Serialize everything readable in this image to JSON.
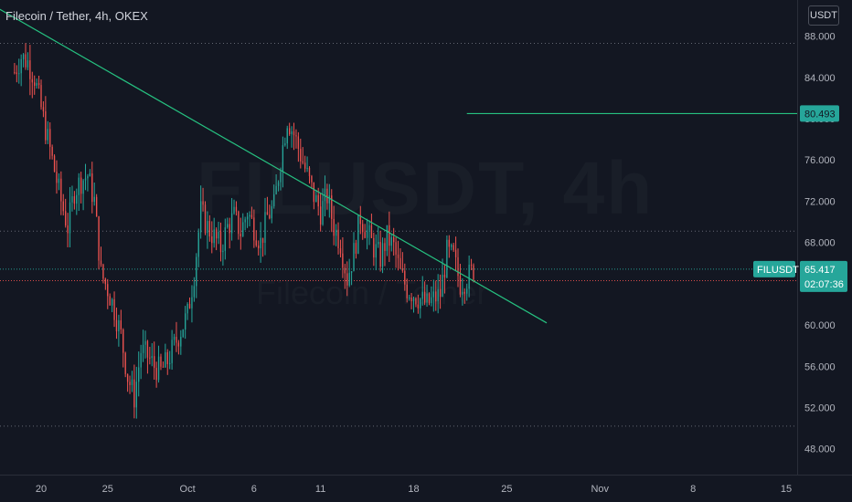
{
  "header": {
    "symbol_title": "Filecoin / Tether, 4h, OKEX",
    "unit_label": "USDT"
  },
  "watermark": {
    "main": "FILUSDT, 4h",
    "sub": "Filecoin / Tether"
  },
  "colors": {
    "background": "#131722",
    "up": "#26a69a",
    "down": "#ef5350",
    "trendline": "#26c281",
    "last_price_badge": "#26a69a",
    "grid_dotted": "#787b86",
    "axis_text": "#b2b5be"
  },
  "price_axis": {
    "ticks": [
      "88.000",
      "84.000",
      "80.000",
      "76.000",
      "72.000",
      "68.000",
      "64.000",
      "60.000",
      "56.000",
      "52.000",
      "48.000"
    ],
    "badges": {
      "level_value": "80.493",
      "symbol_tag": "FILUSDT",
      "last_price": "65.417",
      "countdown": "02:07:36"
    }
  },
  "time_axis": {
    "ticks": [
      "20",
      "25",
      "Oct",
      "6",
      "11",
      "18",
      "25",
      "Nov",
      "8",
      "15"
    ]
  },
  "chart_data": {
    "type": "candlestick",
    "title": "Filecoin / Tether, 4h, OKEX",
    "timeframe": "4h",
    "ylim": [
      45.5,
      91.5
    ],
    "yticks": [
      88,
      84,
      80,
      76,
      72,
      68,
      64,
      60,
      56,
      52,
      48
    ],
    "xticks": [
      {
        "label": "20",
        "date": "2021-09-20"
      },
      {
        "label": "25",
        "date": "2021-09-25"
      },
      {
        "label": "Oct",
        "date": "2021-10-01"
      },
      {
        "label": "6",
        "date": "2021-10-06"
      },
      {
        "label": "11",
        "date": "2021-10-11"
      },
      {
        "label": "18",
        "date": "2021-10-18"
      },
      {
        "label": "25",
        "date": "2021-10-25"
      },
      {
        "label": "Nov",
        "date": "2021-11-01"
      },
      {
        "label": "8",
        "date": "2021-11-08"
      },
      {
        "label": "15",
        "date": "2021-11-15"
      }
    ],
    "price_path": [
      [
        "2021-09-18",
        84.5
      ],
      [
        "2021-09-18T12",
        86.0
      ],
      [
        "2021-09-19",
        85.5
      ],
      [
        "2021-09-19T12",
        84.0
      ],
      [
        "2021-09-20",
        81.0
      ],
      [
        "2021-09-20T12",
        78.0
      ],
      [
        "2021-09-21",
        75.0
      ],
      [
        "2021-09-21T12",
        72.0
      ],
      [
        "2021-09-22",
        69.5
      ],
      [
        "2021-09-22T12",
        73.0
      ],
      [
        "2021-09-23",
        74.0
      ],
      [
        "2021-09-23T12",
        74.5
      ],
      [
        "2021-09-24",
        72.0
      ],
      [
        "2021-09-24T12",
        65.0
      ],
      [
        "2021-09-25",
        63.5
      ],
      [
        "2021-09-25T12",
        61.5
      ],
      [
        "2021-09-26",
        59.0
      ],
      [
        "2021-09-26T12",
        55.0
      ],
      [
        "2021-09-27",
        53.0
      ],
      [
        "2021-09-27T12",
        57.5
      ],
      [
        "2021-09-28",
        57.0
      ],
      [
        "2021-09-28T12",
        56.0
      ],
      [
        "2021-09-29",
        55.5
      ],
      [
        "2021-09-29T12",
        56.5
      ],
      [
        "2021-09-30",
        58.0
      ],
      [
        "2021-09-30T12",
        59.5
      ],
      [
        "2021-10-01",
        61.0
      ],
      [
        "2021-10-01T12",
        65.0
      ],
      [
        "2021-10-02",
        71.0
      ],
      [
        "2021-10-02T12",
        69.5
      ],
      [
        "2021-10-03",
        68.5
      ],
      [
        "2021-10-03T12",
        67.5
      ],
      [
        "2021-10-04",
        69.5
      ],
      [
        "2021-10-04T12",
        70.5
      ],
      [
        "2021-10-05",
        69.0
      ],
      [
        "2021-10-05T12",
        71.0
      ],
      [
        "2021-10-06",
        69.5
      ],
      [
        "2021-10-06T12",
        68.0
      ],
      [
        "2021-10-07",
        70.5
      ],
      [
        "2021-10-07T12",
        71.5
      ],
      [
        "2021-10-08",
        76.0
      ],
      [
        "2021-10-08T12",
        80.0
      ],
      [
        "2021-10-09",
        78.5
      ],
      [
        "2021-10-09T12",
        76.5
      ],
      [
        "2021-10-10",
        74.5
      ],
      [
        "2021-10-10T12",
        72.5
      ],
      [
        "2021-10-11",
        71.0
      ],
      [
        "2021-10-11T12",
        72.5
      ],
      [
        "2021-10-12",
        69.5
      ],
      [
        "2021-10-12T12",
        68.0
      ],
      [
        "2021-10-13",
        64.5
      ],
      [
        "2021-10-13T12",
        67.0
      ],
      [
        "2021-10-14",
        70.5
      ],
      [
        "2021-10-14T12",
        69.0
      ],
      [
        "2021-10-15",
        67.5
      ],
      [
        "2021-10-15T12",
        66.5
      ],
      [
        "2021-10-16",
        68.5
      ],
      [
        "2021-10-16T12",
        67.5
      ],
      [
        "2021-10-17",
        65.0
      ],
      [
        "2021-10-17T12",
        63.5
      ],
      [
        "2021-10-18",
        63.0
      ],
      [
        "2021-10-18T12",
        62.5
      ],
      [
        "2021-10-19",
        62.0
      ],
      [
        "2021-10-19T12",
        62.5
      ],
      [
        "2021-10-20",
        63.0
      ],
      [
        "2021-10-20T12",
        67.0
      ],
      [
        "2021-10-21",
        66.5
      ],
      [
        "2021-10-21T12",
        64.0
      ],
      [
        "2021-10-22",
        64.5
      ],
      [
        "2021-10-22T12",
        65.4
      ]
    ],
    "current_price": 65.417,
    "trendline": [
      [
        "2021-09-15",
        92.0
      ],
      [
        "2021-10-28",
        60.2
      ]
    ],
    "horizontal_level": {
      "value": 80.493,
      "from": "2021-10-22"
    },
    "dotted_levels": [
      87.3,
      69.1,
      50.2
    ],
    "red_dotted_level": 64.3
  }
}
